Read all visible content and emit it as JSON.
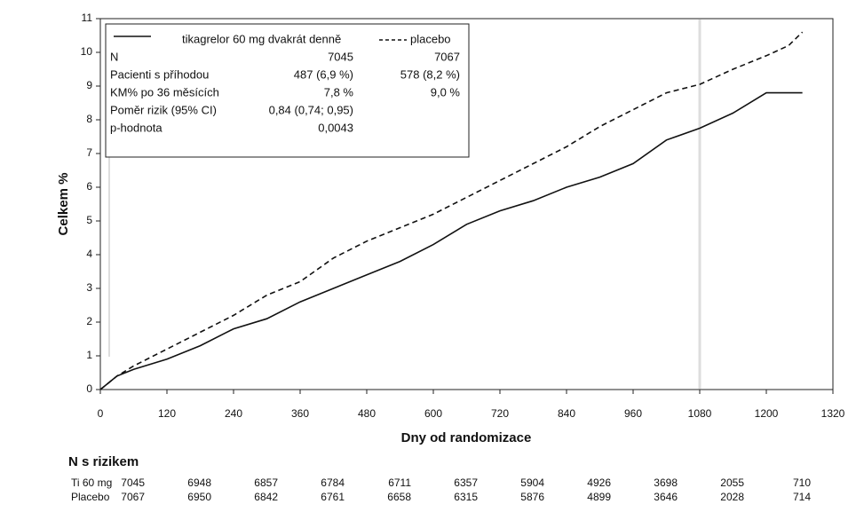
{
  "chart_data": {
    "type": "line",
    "x": [
      0,
      30,
      60,
      120,
      180,
      240,
      300,
      360,
      420,
      480,
      540,
      600,
      660,
      720,
      780,
      840,
      900,
      960,
      1020,
      1080,
      1140,
      1200,
      1240,
      1265
    ],
    "series": [
      {
        "name": "tikagrelor 60 mg dvakrát denně",
        "color": "#111111",
        "style": "solid",
        "values": [
          0,
          0.4,
          0.6,
          0.9,
          1.3,
          1.8,
          2.1,
          2.6,
          3.0,
          3.4,
          3.8,
          4.3,
          4.9,
          5.3,
          5.6,
          6.0,
          6.3,
          6.7,
          7.4,
          7.75,
          8.2,
          8.8,
          8.8,
          8.8
        ]
      },
      {
        "name": "placebo",
        "color": "#111111",
        "style": "dashed",
        "values": [
          0,
          0.4,
          0.7,
          1.2,
          1.7,
          2.2,
          2.8,
          3.2,
          3.9,
          4.4,
          4.8,
          5.2,
          5.7,
          6.2,
          6.7,
          7.2,
          7.8,
          8.3,
          8.8,
          9.05,
          9.5,
          9.9,
          10.2,
          10.6
        ]
      }
    ],
    "xlim": [
      0,
      1320
    ],
    "xticks": [
      0,
      120,
      240,
      360,
      480,
      600,
      720,
      840,
      960,
      1080,
      1200,
      1320
    ],
    "ylim": [
      0,
      11
    ],
    "yticks": [
      0,
      1,
      2,
      3,
      4,
      5,
      6,
      7,
      8,
      9,
      10,
      11
    ],
    "vline": 1080,
    "xlabel": "Dny od randomizace",
    "ylabel": "Celkem %",
    "stats": [
      [
        "N",
        "7045",
        "7067"
      ],
      [
        "Pacienti s příhodou",
        "487 (6,9 %)",
        "578 (8,2 %)"
      ],
      [
        "KM% po 36 měsících",
        "7,8 %",
        "9,0 %"
      ],
      [
        "Poměr rizik (95% CI)",
        "0,84 (0,74; 0,95)"
      ],
      [
        "p-hodnota",
        "0,0043"
      ]
    ],
    "at_risk": {
      "title": "N s rizikem",
      "rows": [
        {
          "name": "Ti 60 mg",
          "values": [
            7045,
            6948,
            6857,
            6784,
            6711,
            6357,
            5904,
            4926,
            3698,
            2055,
            710
          ]
        },
        {
          "name": "Placebo",
          "values": [
            7067,
            6950,
            6842,
            6761,
            6658,
            6315,
            5876,
            4899,
            3646,
            2028,
            714
          ]
        }
      ]
    }
  }
}
